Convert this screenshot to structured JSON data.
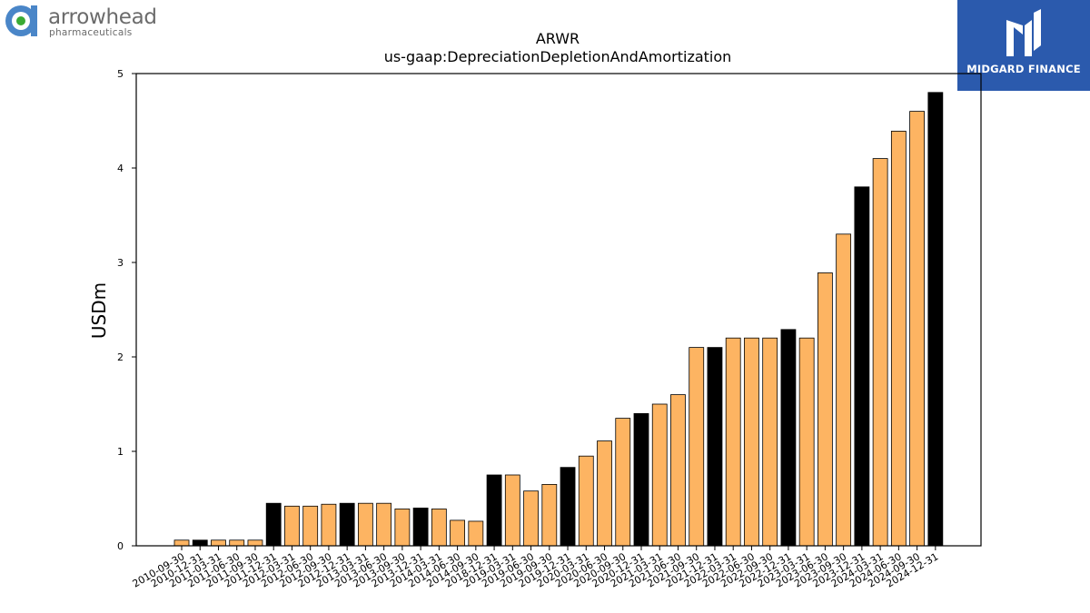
{
  "branding": {
    "left_logo_name": "arrowhead",
    "left_logo_sub": "pharmaceuticals",
    "left_logo_icon": "arrowhead-logo-icon",
    "right_logo_text": "MIDGARD FINANCE",
    "right_logo_icon": "midgard-logo-icon",
    "right_logo_bg": "#2b5aad"
  },
  "chart_data": {
    "type": "bar",
    "title": "ARWR",
    "subtitle": "us-gaap:DepreciationDepletionAndAmortization",
    "xlabel": "",
    "ylabel": "USDm",
    "ylim": [
      0,
      5
    ],
    "yticks": [
      0,
      1,
      2,
      3,
      4,
      5
    ],
    "grid": false,
    "legend": "none",
    "colors": {
      "quarter": "#fdb462",
      "year_end": "#000000",
      "edge": "#000000"
    },
    "categories": [
      "2010-09-30",
      "2010-12-31",
      "2011-03-31",
      "2011-06-30",
      "2011-09-30",
      "2011-12-31",
      "2012-03-31",
      "2012-06-30",
      "2012-09-30",
      "2012-12-31",
      "2013-03-31",
      "2013-06-30",
      "2013-09-30",
      "2013-12-31",
      "2014-03-31",
      "2014-06-30",
      "2014-09-30",
      "2018-12-31",
      "2019-03-31",
      "2019-06-30",
      "2019-09-30",
      "2019-12-31",
      "2020-03-31",
      "2020-06-30",
      "2020-09-30",
      "2020-12-31",
      "2021-03-31",
      "2021-06-30",
      "2021-09-30",
      "2021-12-31",
      "2022-03-31",
      "2022-06-30",
      "2022-09-30",
      "2022-12-31",
      "2023-03-31",
      "2023-06-30",
      "2023-09-30",
      "2023-12-31",
      "2024-03-31",
      "2024-06-30",
      "2024-09-30",
      "2024-12-31"
    ],
    "values": [
      0.06,
      0.06,
      0.06,
      0.06,
      0.06,
      0.45,
      0.42,
      0.42,
      0.44,
      0.45,
      0.45,
      0.45,
      0.39,
      0.4,
      0.39,
      0.27,
      0.26,
      0.75,
      0.75,
      0.58,
      0.65,
      0.83,
      0.95,
      1.11,
      1.35,
      1.4,
      1.5,
      1.6,
      2.1,
      2.1,
      2.2,
      2.2,
      2.2,
      2.29,
      2.2,
      2.89,
      3.3,
      3.8,
      4.1,
      4.39,
      4.6,
      4.8
    ],
    "highlight": [
      false,
      true,
      false,
      false,
      false,
      true,
      false,
      false,
      false,
      true,
      false,
      false,
      false,
      true,
      false,
      false,
      false,
      true,
      false,
      false,
      false,
      true,
      false,
      false,
      false,
      true,
      false,
      false,
      false,
      true,
      false,
      false,
      false,
      true,
      false,
      false,
      false,
      true,
      false,
      false,
      false,
      true
    ]
  }
}
